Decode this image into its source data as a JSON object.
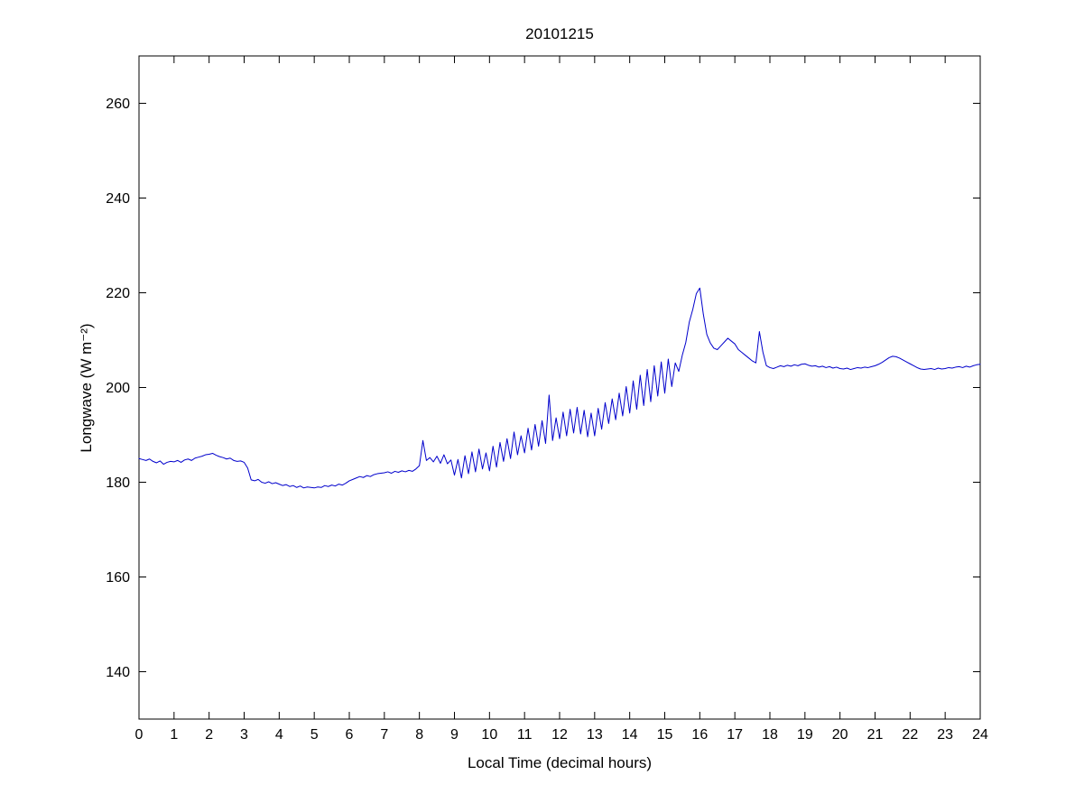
{
  "chart_data": {
    "type": "line",
    "title": "20101215",
    "xlabel": "Local Time (decimal hours)",
    "ylabel": "Longwave (W m⁻²)",
    "xlim": [
      0,
      24
    ],
    "ylim": [
      130,
      270
    ],
    "x_ticks": [
      0,
      1,
      2,
      3,
      4,
      5,
      6,
      7,
      8,
      9,
      10,
      11,
      12,
      13,
      14,
      15,
      16,
      17,
      18,
      19,
      20,
      21,
      22,
      23,
      24
    ],
    "y_ticks": [
      140,
      160,
      180,
      200,
      220,
      240,
      260
    ],
    "grid": false,
    "legend": "none",
    "line_color": "#0000CC",
    "series_name": "longwave",
    "x_start": 0,
    "x_step": 0.1,
    "values": [
      185.0,
      184.8,
      184.6,
      184.9,
      184.4,
      184.1,
      184.5,
      183.8,
      184.2,
      184.4,
      184.3,
      184.6,
      184.2,
      184.7,
      184.9,
      184.6,
      185.1,
      185.3,
      185.5,
      185.8,
      185.9,
      186.1,
      185.7,
      185.4,
      185.2,
      184.9,
      185.1,
      184.6,
      184.4,
      184.5,
      184.2,
      183.0,
      180.5,
      180.3,
      180.6,
      180.0,
      179.8,
      180.1,
      179.7,
      179.9,
      179.6,
      179.3,
      179.5,
      179.1,
      179.3,
      178.9,
      179.2,
      178.8,
      179.0,
      178.9,
      178.8,
      179.0,
      178.9,
      179.3,
      179.1,
      179.4,
      179.2,
      179.6,
      179.4,
      179.8,
      180.3,
      180.6,
      180.9,
      181.2,
      181.0,
      181.4,
      181.2,
      181.6,
      181.8,
      181.9,
      182.0,
      182.2,
      181.9,
      182.3,
      182.1,
      182.4,
      182.2,
      182.5,
      182.3,
      182.8,
      183.5,
      188.8,
      184.6,
      185.2,
      184.3,
      185.5,
      184.0,
      185.8,
      183.9,
      184.7,
      181.5,
      184.8,
      180.9,
      185.6,
      181.8,
      186.4,
      182.2,
      187.0,
      182.8,
      186.2,
      182.4,
      187.6,
      183.2,
      188.4,
      184.4,
      189.2,
      185.0,
      190.6,
      185.8,
      189.8,
      186.2,
      191.4,
      186.8,
      192.2,
      187.6,
      193.0,
      188.2,
      198.4,
      188.8,
      193.6,
      189.2,
      194.8,
      189.8,
      195.4,
      190.4,
      195.8,
      190.2,
      195.2,
      189.6,
      194.6,
      189.8,
      195.6,
      191.2,
      196.8,
      192.4,
      197.6,
      193.2,
      198.8,
      194.0,
      200.2,
      194.6,
      201.4,
      195.4,
      202.6,
      196.2,
      203.8,
      197.0,
      204.6,
      198.2,
      205.4,
      198.8,
      206.0,
      200.2,
      205.2,
      203.4,
      206.8,
      209.5,
      213.8,
      216.5,
      219.8,
      221.0,
      215.5,
      211.2,
      209.4,
      208.3,
      208.0,
      208.8,
      209.6,
      210.4,
      209.8,
      209.2,
      208.0,
      207.4,
      206.8,
      206.2,
      205.6,
      205.2,
      211.8,
      207.5,
      204.6,
      204.2,
      204.0,
      204.3,
      204.6,
      204.4,
      204.7,
      204.5,
      204.8,
      204.6,
      204.9,
      205.0,
      204.7,
      204.5,
      204.6,
      204.3,
      204.5,
      204.2,
      204.4,
      204.1,
      204.3,
      204.0,
      203.9,
      204.1,
      203.8,
      204.0,
      204.2,
      204.1,
      204.3,
      204.2,
      204.4,
      204.6,
      204.9,
      205.3,
      205.8,
      206.3,
      206.6,
      206.5,
      206.2,
      205.8,
      205.4,
      205.0,
      204.6,
      204.2,
      203.9,
      203.8,
      203.9,
      204.0,
      203.8,
      204.1,
      203.9,
      204.0,
      204.2,
      204.1,
      204.3,
      204.4,
      204.2,
      204.5,
      204.3,
      204.6,
      204.8,
      204.9
    ]
  }
}
